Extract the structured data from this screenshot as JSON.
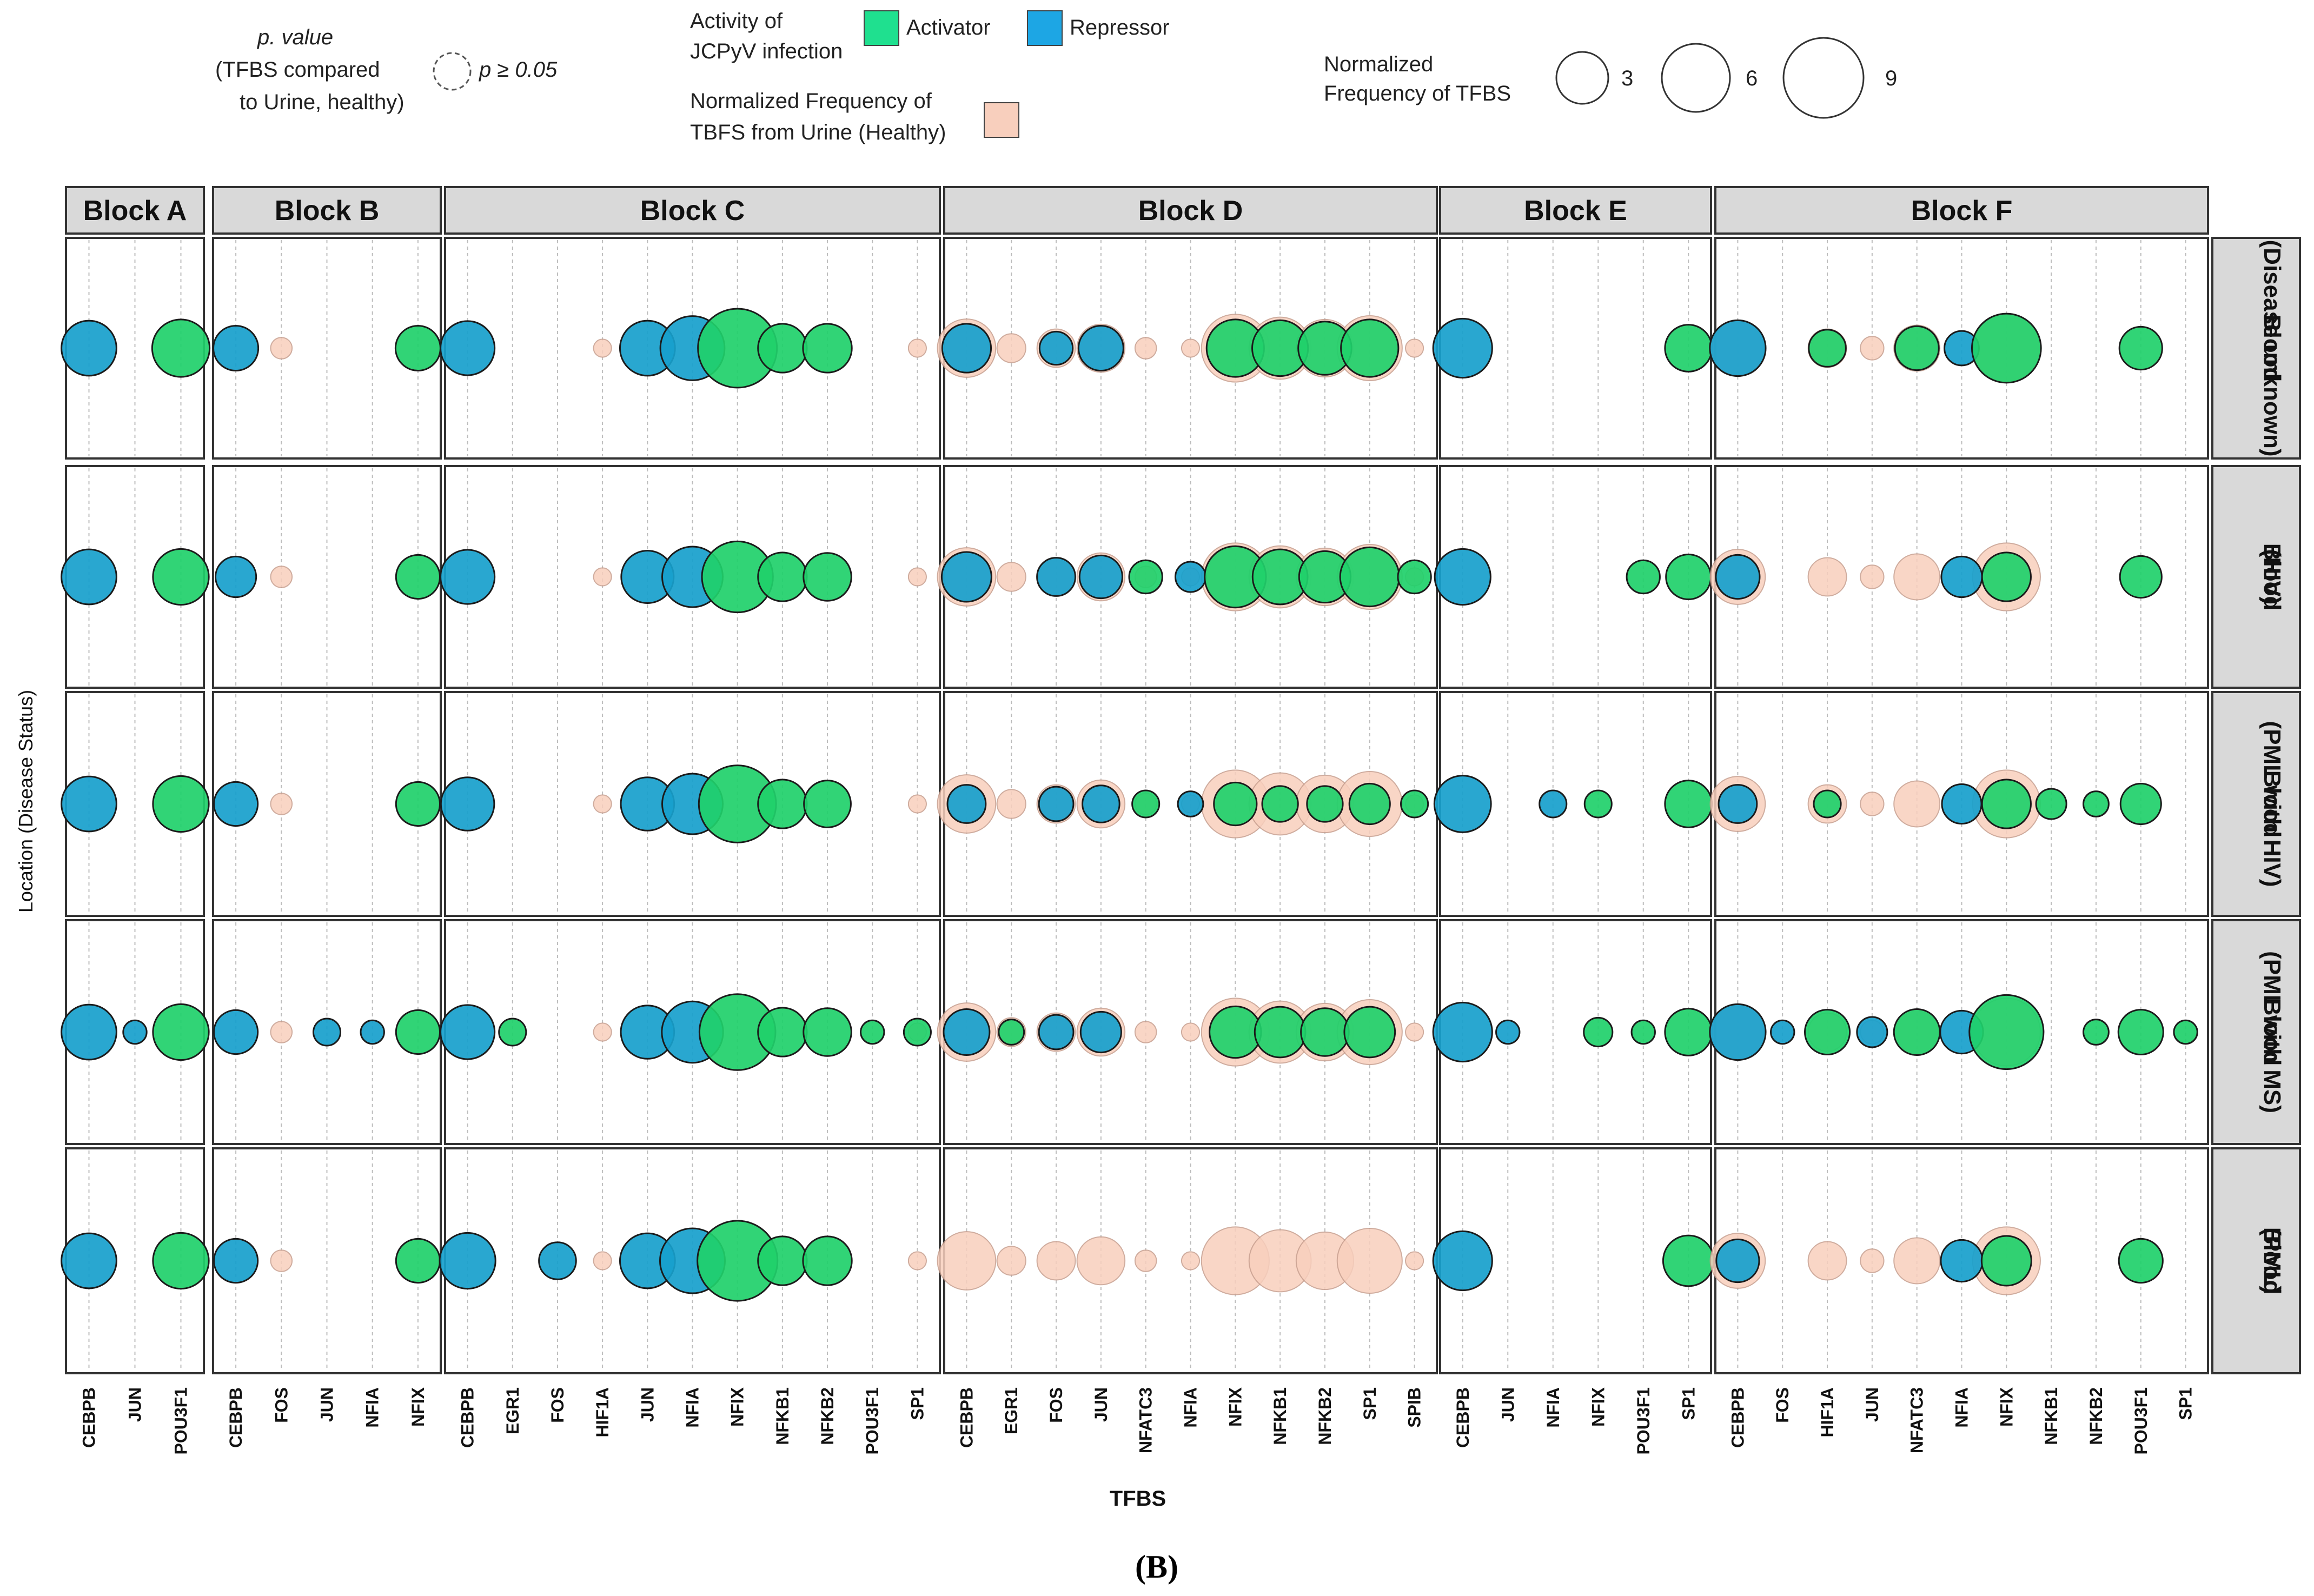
{
  "legend": {
    "pvalue_title": "p. value",
    "pvalue_line2": "(TFBS compared",
    "pvalue_line3": "to Urine, healthy)",
    "pvalue_key": "p ≥ 0.05",
    "activity_line1": "Activity of",
    "activity_line2": "JCPyV infection",
    "activator": "Activator",
    "repressor": "Repressor",
    "urine_line1": "Normalized Frequency of",
    "urine_line2": "TBFS from Urine (Healthy)",
    "size_line1": "Normalized",
    "size_line2": "Frequency of TFBS",
    "size_values": [
      3,
      6,
      9
    ]
  },
  "colors": {
    "activator": "#1fd06a",
    "repressor": "#17a0cc",
    "urine": "#f8cfbd",
    "urine_stroke": "#c79e8e",
    "strip_bg": "#d9d9d9",
    "grid": "#bdbdbd"
  },
  "caption": "(B)",
  "chart_data": {
    "type": "scatter",
    "xlabel": "TFBS",
    "ylabel": "Location (Disease Status)",
    "size_scale_values": [
      3,
      6,
      9
    ],
    "blocks": [
      {
        "name": "Block A",
        "tfbs": [
          "CEBPB",
          "JUN",
          "POU3F1"
        ]
      },
      {
        "name": "Block B",
        "tfbs": [
          "CEBPB",
          "FOS",
          "JUN",
          "NFIA",
          "NFIX"
        ]
      },
      {
        "name": "Block C",
        "tfbs": [
          "CEBPB",
          "EGR1",
          "FOS",
          "HIF1A",
          "JUN",
          "NFIA",
          "NFIX",
          "NFKB1",
          "NFKB2",
          "POU3F1",
          "SP1"
        ]
      },
      {
        "name": "Block D",
        "tfbs": [
          "CEBPB",
          "EGR1",
          "FOS",
          "JUN",
          "NFATC3",
          "NFIA",
          "NFIX",
          "NFKB1",
          "NFKB2",
          "SP1",
          "SPIB"
        ]
      },
      {
        "name": "Block E",
        "tfbs": [
          "CEBPB",
          "JUN",
          "NFIA",
          "NFIX",
          "POU3F1",
          "SP1"
        ]
      },
      {
        "name": "Block F",
        "tfbs": [
          "CEBPB",
          "FOS",
          "HIF1A",
          "JUN",
          "NFATC3",
          "NFIA",
          "NFIX",
          "NFKB1",
          "NFKB2",
          "POU3F1",
          "SP1"
        ]
      }
    ],
    "rows": [
      {
        "lines": [
          "Blood",
          "(Disease unknown)"
        ]
      },
      {
        "lines": [
          "Blood",
          "(HIV)"
        ]
      },
      {
        "lines": [
          "Blood",
          "(PML with HIV)"
        ]
      },
      {
        "lines": [
          "Blood",
          "(PML with MS)"
        ]
      },
      {
        "lines": [
          "Blood",
          "(PML)"
        ]
      }
    ],
    "urine_reference": [
      [
        0,
        0,
        0
      ],
      [
        0,
        0.5,
        0,
        0,
        0
      ],
      [
        0,
        0,
        0,
        0.35,
        0,
        0,
        0,
        0,
        0,
        0,
        0.35
      ],
      [
        3.7,
        0.9,
        1.6,
        2.5,
        0.5,
        0.35,
        5,
        4.2,
        3.6,
        4.6,
        0.35
      ],
      [
        0,
        0,
        0,
        0,
        0,
        0
      ],
      [
        3.3,
        0,
        1.6,
        0.6,
        2.3,
        0,
        5,
        0,
        0,
        0,
        0
      ]
    ],
    "points": [
      [
        [
          [
            3.3,
            "R"
          ],
          [
            0,
            ""
          ],
          [
            3.6,
            "A"
          ]
        ],
        [
          [
            2.2,
            "R"
          ],
          [
            0,
            ""
          ],
          [
            0,
            ""
          ],
          [
            0,
            ""
          ],
          [
            2.2,
            "A"
          ]
        ],
        [
          [
            3.2,
            "R"
          ],
          [
            0,
            ""
          ],
          [
            0,
            ""
          ],
          [
            0,
            ""
          ],
          [
            3.3,
            "R"
          ],
          [
            4.5,
            "R"
          ],
          [
            6.8,
            "A"
          ],
          [
            2.6,
            "A"
          ],
          [
            2.6,
            "A"
          ],
          [
            0,
            ""
          ],
          [
            0,
            ""
          ]
        ],
        [
          [
            2.6,
            "R"
          ],
          [
            0,
            ""
          ],
          [
            1.2,
            "R"
          ],
          [
            2.2,
            "R"
          ],
          [
            0,
            ""
          ],
          [
            0,
            ""
          ],
          [
            3.6,
            "A"
          ],
          [
            3.4,
            "A"
          ],
          [
            3.1,
            "A"
          ],
          [
            3.6,
            "A"
          ],
          [
            0,
            ""
          ]
        ],
        [
          [
            3.8,
            "R"
          ],
          [
            0,
            ""
          ],
          [
            0,
            ""
          ],
          [
            0,
            ""
          ],
          [
            0,
            ""
          ],
          [
            2.4,
            "A"
          ]
        ],
        [
          [
            3.4,
            "R"
          ],
          [
            0,
            ""
          ],
          [
            1.5,
            "A"
          ],
          [
            0,
            ""
          ],
          [
            2.1,
            "A"
          ],
          [
            1.3,
            "R"
          ],
          [
            5.2,
            "A"
          ],
          [
            0,
            ""
          ],
          [
            0,
            ""
          ],
          [
            2.0,
            "A"
          ],
          [
            0,
            ""
          ]
        ]
      ],
      [
        [
          [
            3.3,
            "R"
          ],
          [
            0,
            ""
          ],
          [
            3.4,
            "A"
          ]
        ],
        [
          [
            1.8,
            "R"
          ],
          [
            0,
            ""
          ],
          [
            0,
            ""
          ],
          [
            0,
            ""
          ],
          [
            2.1,
            "A"
          ]
        ],
        [
          [
            3.2,
            "R"
          ],
          [
            0,
            ""
          ],
          [
            0,
            ""
          ],
          [
            0,
            ""
          ],
          [
            3.0,
            "R"
          ],
          [
            4.0,
            "R"
          ],
          [
            5.5,
            "A"
          ],
          [
            2.6,
            "A"
          ],
          [
            2.5,
            "A"
          ],
          [
            0,
            ""
          ],
          [
            0,
            ""
          ]
        ],
        [
          [
            2.7,
            "R"
          ],
          [
            0,
            ""
          ],
          [
            1.6,
            "R"
          ],
          [
            2.0,
            "R"
          ],
          [
            1.2,
            "A"
          ],
          [
            1.0,
            "R"
          ],
          [
            4.1,
            "A"
          ],
          [
            3.3,
            "A"
          ],
          [
            2.9,
            "A"
          ],
          [
            3.8,
            "A"
          ],
          [
            1.2,
            "A"
          ]
        ],
        [
          [
            3.4,
            "R"
          ],
          [
            0,
            ""
          ],
          [
            0,
            ""
          ],
          [
            0,
            ""
          ],
          [
            1.2,
            "A"
          ],
          [
            2.2,
            "A"
          ]
        ],
        [
          [
            2.1,
            "R"
          ],
          [
            0,
            ""
          ],
          [
            0,
            ""
          ],
          [
            0,
            ""
          ],
          [
            0,
            ""
          ],
          [
            1.8,
            "R"
          ],
          [
            2.6,
            "A"
          ],
          [
            0,
            ""
          ],
          [
            0,
            ""
          ],
          [
            1.9,
            "A"
          ],
          [
            0,
            ""
          ]
        ]
      ],
      [
        [
          [
            3.3,
            "R"
          ],
          [
            0,
            ""
          ],
          [
            3.4,
            "A"
          ]
        ],
        [
          [
            2.1,
            "R"
          ],
          [
            0,
            ""
          ],
          [
            0,
            ""
          ],
          [
            0,
            ""
          ],
          [
            2.1,
            "A"
          ]
        ],
        [
          [
            3.1,
            "R"
          ],
          [
            0,
            ""
          ],
          [
            0,
            ""
          ],
          [
            0,
            ""
          ],
          [
            3.1,
            "R"
          ],
          [
            4.0,
            "R"
          ],
          [
            6.5,
            "A"
          ],
          [
            2.6,
            "A"
          ],
          [
            2.4,
            "A"
          ],
          [
            0,
            ""
          ],
          [
            0,
            ""
          ]
        ],
        [
          [
            1.6,
            "R"
          ],
          [
            0,
            ""
          ],
          [
            1.3,
            "R"
          ],
          [
            1.5,
            "R"
          ],
          [
            0.8,
            "A"
          ],
          [
            0.7,
            "R"
          ],
          [
            2.0,
            "A"
          ],
          [
            1.4,
            "A"
          ],
          [
            1.4,
            "A"
          ],
          [
            1.8,
            "A"
          ],
          [
            0.8,
            "A"
          ]
        ],
        [
          [
            3.5,
            "R"
          ],
          [
            0,
            ""
          ],
          [
            0.8,
            "R"
          ],
          [
            0.8,
            "A"
          ],
          [
            0,
            ""
          ],
          [
            2.4,
            "A"
          ]
        ],
        [
          [
            1.6,
            "R"
          ],
          [
            0,
            ""
          ],
          [
            0.8,
            "A"
          ],
          [
            0,
            ""
          ],
          [
            0,
            ""
          ],
          [
            1.7,
            "R"
          ],
          [
            2.6,
            "A"
          ],
          [
            1.0,
            "A"
          ],
          [
            0.7,
            "A"
          ],
          [
            1.8,
            "A"
          ],
          [
            0,
            ""
          ]
        ]
      ],
      [
        [
          [
            3.3,
            "R"
          ],
          [
            0.6,
            "R"
          ],
          [
            3.4,
            "A"
          ]
        ],
        [
          [
            2.1,
            "R"
          ],
          [
            0,
            ""
          ],
          [
            0.8,
            "R"
          ],
          [
            0.6,
            "R"
          ],
          [
            2.1,
            "A"
          ]
        ],
        [
          [
            3.2,
            "R"
          ],
          [
            0.8,
            "A"
          ],
          [
            0,
            ""
          ],
          [
            0,
            ""
          ],
          [
            3.1,
            "R"
          ],
          [
            4.1,
            "R"
          ],
          [
            6.3,
            "A"
          ],
          [
            2.6,
            "A"
          ],
          [
            2.5,
            "A"
          ],
          [
            0.6,
            "A"
          ],
          [
            0.8,
            "A"
          ]
        ],
        [
          [
            2.3,
            "R"
          ],
          [
            0.7,
            "A"
          ],
          [
            1.3,
            "R"
          ],
          [
            1.8,
            "R"
          ],
          [
            0,
            ""
          ],
          [
            0,
            ""
          ],
          [
            2.9,
            "A"
          ],
          [
            2.8,
            "A"
          ],
          [
            2.5,
            "A"
          ],
          [
            2.8,
            "A"
          ],
          [
            0,
            ""
          ]
        ],
        [
          [
            3.8,
            "R"
          ],
          [
            0.6,
            "R"
          ],
          [
            0,
            ""
          ],
          [
            0.9,
            "A"
          ],
          [
            0.6,
            "A"
          ],
          [
            2.4,
            "A"
          ]
        ],
        [
          [
            3.4,
            "R"
          ],
          [
            0.6,
            "R"
          ],
          [
            2.2,
            "A"
          ],
          [
            1.0,
            "R"
          ],
          [
            2.3,
            "A"
          ],
          [
            2.0,
            "R"
          ],
          [
            6.0,
            "A"
          ],
          [
            0,
            ""
          ],
          [
            0.7,
            "A"
          ],
          [
            2.2,
            "A"
          ],
          [
            0.6,
            "A"
          ]
        ]
      ],
      [
        [
          [
            3.3,
            "R"
          ],
          [
            0,
            ""
          ],
          [
            3.4,
            "A"
          ]
        ],
        [
          [
            2.1,
            "R"
          ],
          [
            0,
            ""
          ],
          [
            0,
            ""
          ],
          [
            0,
            ""
          ],
          [
            2.1,
            "A"
          ]
        ],
        [
          [
            3.4,
            "R"
          ],
          [
            0,
            ""
          ],
          [
            1.5,
            "R"
          ],
          [
            0,
            ""
          ],
          [
            3.3,
            "R"
          ],
          [
            4.6,
            "R"
          ],
          [
            7.0,
            "A"
          ],
          [
            2.6,
            "A"
          ],
          [
            2.6,
            "A"
          ],
          [
            0,
            ""
          ],
          [
            0,
            ""
          ]
        ],
        [
          [
            0,
            ""
          ],
          [
            0,
            ""
          ],
          [
            0,
            ""
          ],
          [
            0,
            ""
          ],
          [
            0,
            ""
          ],
          [
            0,
            ""
          ],
          [
            0,
            ""
          ],
          [
            0,
            ""
          ],
          [
            0,
            ""
          ],
          [
            0,
            ""
          ],
          [
            0,
            ""
          ]
        ],
        [
          [
            3.8,
            "R"
          ],
          [
            0,
            ""
          ],
          [
            0,
            ""
          ],
          [
            0,
            ""
          ],
          [
            0,
            ""
          ],
          [
            2.8,
            "A"
          ]
        ],
        [
          [
            2.0,
            "R"
          ],
          [
            0,
            ""
          ],
          [
            0,
            ""
          ],
          [
            0,
            ""
          ],
          [
            0,
            ""
          ],
          [
            1.9,
            "R"
          ],
          [
            2.7,
            "A"
          ],
          [
            0,
            ""
          ],
          [
            0,
            ""
          ],
          [
            2.1,
            "A"
          ],
          [
            0,
            ""
          ]
        ]
      ]
    ]
  }
}
